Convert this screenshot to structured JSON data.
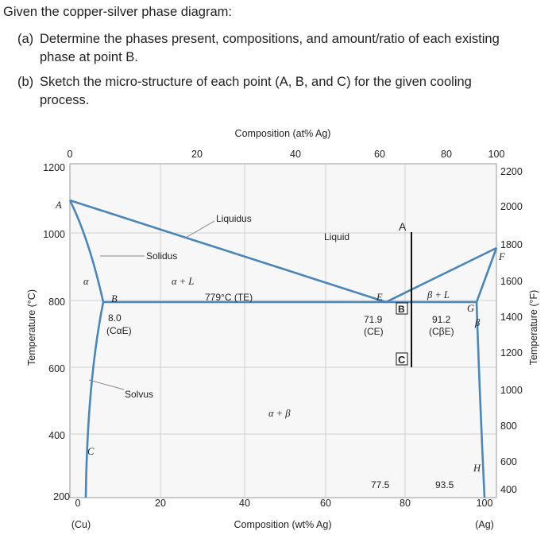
{
  "title": "Given the copper-silver phase diagram:",
  "questions": [
    {
      "label": "(a)",
      "lines": [
        "Determine the phases present, compositions, and amount/ratio of each existing",
        "phase at point B."
      ]
    },
    {
      "label": "(b)",
      "lines": [
        "Sketch the micro-structure of each point (A, B, and C) for the given cooling",
        "process."
      ]
    }
  ],
  "diagram": {
    "top_axis_title": "Composition (at% Ag)",
    "top_ticks": [
      0,
      20,
      40,
      60,
      80,
      100
    ],
    "bottom_axis_title": "Composition (wt% Ag)",
    "bottom_ticks": [
      0,
      20,
      40,
      60,
      80,
      100
    ],
    "left_axis_title": "Temperature (°C)",
    "left_ticks": [
      1200,
      1000,
      800,
      600,
      400,
      200
    ],
    "right_axis_title": "Temperature (°F)",
    "right_ticks": [
      2200,
      2000,
      1800,
      1600,
      1400,
      1200,
      1000,
      800,
      600,
      400
    ],
    "left_end": "(Cu)",
    "right_end": "(Ag)",
    "curve_labels": {
      "liquidus": "Liquidus",
      "solidus": "Solidus",
      "solvus": "Solvus"
    },
    "regions": {
      "liquid": "Liquid",
      "alpha_liquid": "α + L",
      "beta_liquid": "β + L",
      "alpha": "α",
      "beta": "β",
      "alpha_beta": "α + β"
    },
    "eutectic": "779°C (TE)",
    "compositions": {
      "c_alpha_value": "8.0",
      "c_alpha_label": "(CαE)",
      "c_e_value": "71.9",
      "c_e_label": "(CE)",
      "c_beta_value": "91.2",
      "c_beta_label": "(CβE)",
      "c_point": "77.5",
      "h_point": "93.5"
    },
    "points": {
      "A_left": "A",
      "B_left": "B",
      "C_left": "C",
      "E": "E",
      "F": "F",
      "G": "G",
      "H": "H",
      "A": "A",
      "B": "B",
      "C": "C"
    }
  }
}
